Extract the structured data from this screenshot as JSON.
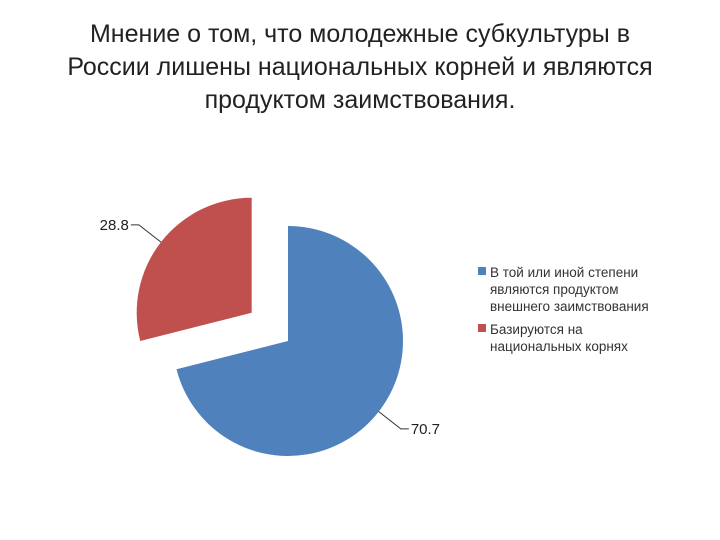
{
  "title_lines": [
    "Мнение о том, что молодежные субкультуры в",
    "России лишены национальных корней и являются",
    "продуктом заимствования."
  ],
  "chart_data": {
    "type": "pie",
    "title": "Мнение о том, что молодежные субкультуры в России лишены национальных корней и являются продуктом заимствования.",
    "slices": [
      {
        "label": "В той или иной степени являются продуктом внешнего заимствования",
        "value": 70.7,
        "value_label": "70.7",
        "color": "#4F81BD",
        "exploded": false
      },
      {
        "label": "Базируются на национальных корнях",
        "value": 28.8,
        "value_label": "28.8",
        "color": "#C0504D",
        "exploded": true
      }
    ],
    "legend_position": "right"
  },
  "legend": [
    {
      "lines": [
        "В той или иной степени",
        "являются продуктом",
        "внешнего заимствования"
      ],
      "color": "#4F81BD"
    },
    {
      "lines": [
        "Базируются на",
        "национальных корнях"
      ],
      "color": "#C0504D"
    }
  ]
}
